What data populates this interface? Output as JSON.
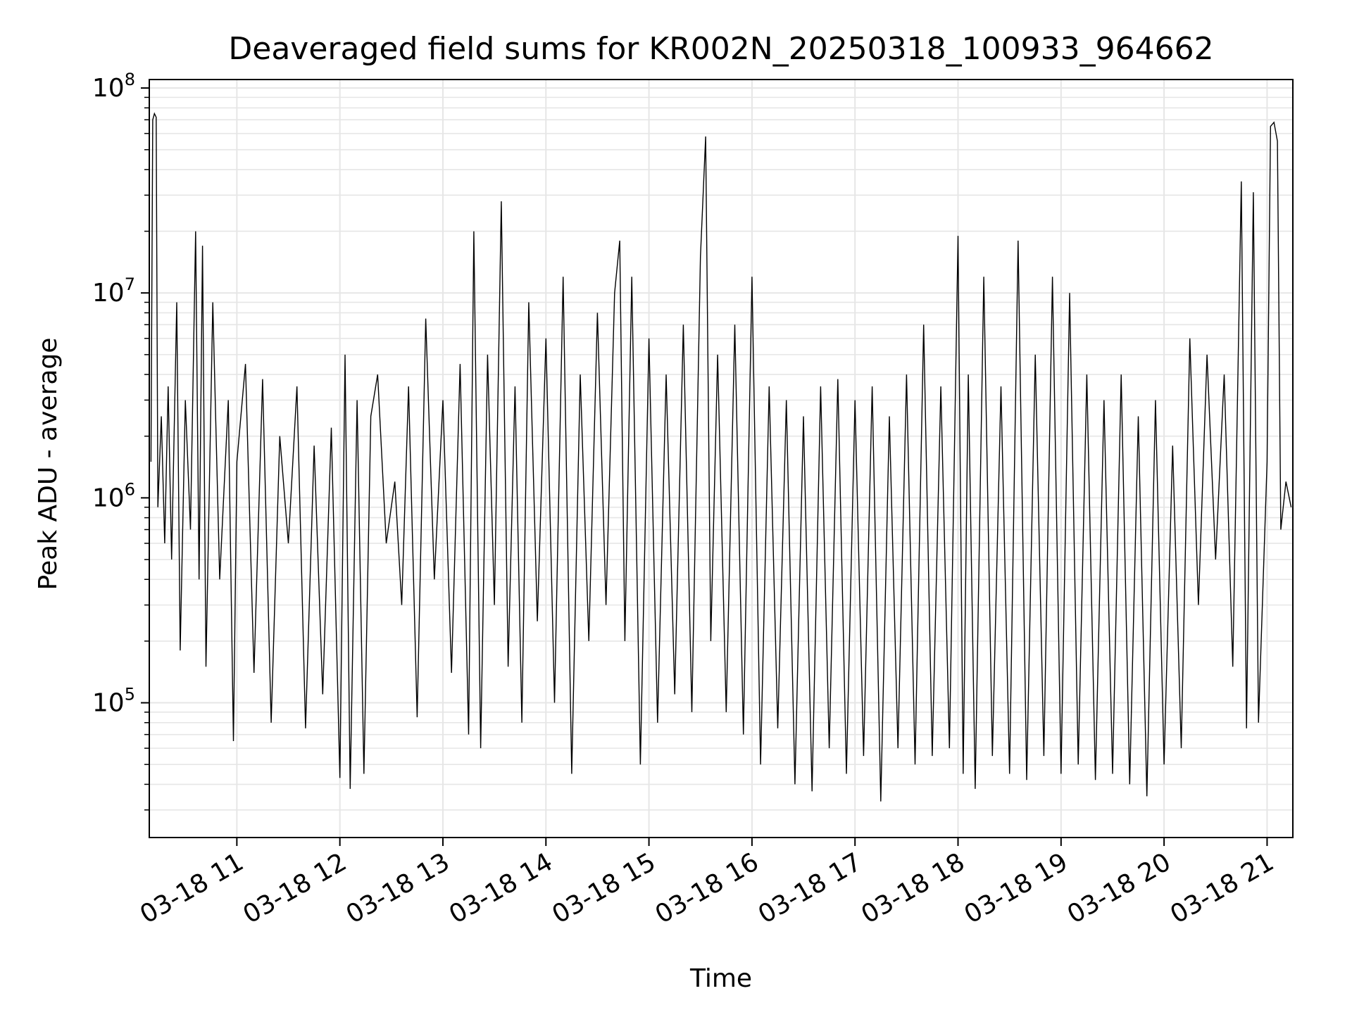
{
  "chart_data": {
    "type": "line",
    "title": "Deaveraged field sums for KR002N_20250318_100933_964662",
    "xlabel": "Time",
    "ylabel": "Peak ADU - average",
    "x_ticks": [
      "03-18 11",
      "03-18 12",
      "03-18 13",
      "03-18 14",
      "03-18 15",
      "03-18 16",
      "03-18 17",
      "03-18 18",
      "03-18 19",
      "03-18 20",
      "03-18 21"
    ],
    "y_ticks": [
      {
        "base": "10",
        "exp": "5",
        "value": 100000
      },
      {
        "base": "10",
        "exp": "6",
        "value": 1000000
      },
      {
        "base": "10",
        "exp": "7",
        "value": 10000000
      },
      {
        "base": "10",
        "exp": "8",
        "value": 100000000
      }
    ],
    "xlim": [
      "2025-03-18 10:09",
      "2025-03-18 21:15"
    ],
    "ylim": [
      22000,
      110000000
    ],
    "yscale": "log",
    "grid": true,
    "line_color": "#000000",
    "grid_color": "#e6e6e6",
    "series": [
      {
        "points": [
          [
            "2025-03-18 10:10",
            1500000
          ],
          [
            "2025-03-18 10:11",
            70000000
          ],
          [
            "2025-03-18 10:12",
            75000000
          ],
          [
            "2025-03-18 10:13",
            72000000
          ],
          [
            "2025-03-18 10:14",
            900000
          ],
          [
            "2025-03-18 10:16",
            2500000
          ],
          [
            "2025-03-18 10:18",
            600000
          ],
          [
            "2025-03-18 10:20",
            3500000
          ],
          [
            "2025-03-18 10:22",
            500000
          ],
          [
            "2025-03-18 10:25",
            9000000
          ],
          [
            "2025-03-18 10:27",
            180000
          ],
          [
            "2025-03-18 10:30",
            3000000
          ],
          [
            "2025-03-18 10:33",
            700000
          ],
          [
            "2025-03-18 10:36",
            20000000
          ],
          [
            "2025-03-18 10:38",
            400000
          ],
          [
            "2025-03-18 10:40",
            17000000
          ],
          [
            "2025-03-18 10:42",
            150000
          ],
          [
            "2025-03-18 10:46",
            9000000
          ],
          [
            "2025-03-18 10:50",
            400000
          ],
          [
            "2025-03-18 10:55",
            3000000
          ],
          [
            "2025-03-18 10:58",
            65000
          ],
          [
            "2025-03-18 11:00",
            1500000
          ],
          [
            "2025-03-18 11:05",
            4500000
          ],
          [
            "2025-03-18 11:10",
            140000
          ],
          [
            "2025-03-18 11:15",
            3800000
          ],
          [
            "2025-03-18 11:20",
            80000
          ],
          [
            "2025-03-18 11:25",
            2000000
          ],
          [
            "2025-03-18 11:30",
            600000
          ],
          [
            "2025-03-18 11:35",
            3500000
          ],
          [
            "2025-03-18 11:40",
            75000
          ],
          [
            "2025-03-18 11:45",
            1800000
          ],
          [
            "2025-03-18 11:50",
            110000
          ],
          [
            "2025-03-18 11:55",
            2200000
          ],
          [
            "2025-03-18 12:00",
            43000
          ],
          [
            "2025-03-18 12:03",
            5000000
          ],
          [
            "2025-03-18 12:06",
            38000
          ],
          [
            "2025-03-18 12:10",
            3000000
          ],
          [
            "2025-03-18 12:14",
            45000
          ],
          [
            "2025-03-18 12:18",
            2500000
          ],
          [
            "2025-03-18 12:22",
            4000000
          ],
          [
            "2025-03-18 12:27",
            600000
          ],
          [
            "2025-03-18 12:32",
            1200000
          ],
          [
            "2025-03-18 12:36",
            300000
          ],
          [
            "2025-03-18 12:40",
            3500000
          ],
          [
            "2025-03-18 12:45",
            85000
          ],
          [
            "2025-03-18 12:50",
            7500000
          ],
          [
            "2025-03-18 12:55",
            400000
          ],
          [
            "2025-03-18 13:00",
            3000000
          ],
          [
            "2025-03-18 13:05",
            140000
          ],
          [
            "2025-03-18 13:10",
            4500000
          ],
          [
            "2025-03-18 13:15",
            70000
          ],
          [
            "2025-03-18 13:18",
            20000000
          ],
          [
            "2025-03-18 13:22",
            60000
          ],
          [
            "2025-03-18 13:26",
            5000000
          ],
          [
            "2025-03-18 13:30",
            300000
          ],
          [
            "2025-03-18 13:34",
            28000000
          ],
          [
            "2025-03-18 13:38",
            150000
          ],
          [
            "2025-03-18 13:42",
            3500000
          ],
          [
            "2025-03-18 13:46",
            80000
          ],
          [
            "2025-03-18 13:50",
            9000000
          ],
          [
            "2025-03-18 13:55",
            250000
          ],
          [
            "2025-03-18 14:00",
            6000000
          ],
          [
            "2025-03-18 14:05",
            100000
          ],
          [
            "2025-03-18 14:10",
            12000000
          ],
          [
            "2025-03-18 14:15",
            45000
          ],
          [
            "2025-03-18 14:20",
            4000000
          ],
          [
            "2025-03-18 14:25",
            200000
          ],
          [
            "2025-03-18 14:30",
            8000000
          ],
          [
            "2025-03-18 14:35",
            300000
          ],
          [
            "2025-03-18 14:40",
            10000000
          ],
          [
            "2025-03-18 14:43",
            18000000
          ],
          [
            "2025-03-18 14:46",
            200000
          ],
          [
            "2025-03-18 14:50",
            12000000
          ],
          [
            "2025-03-18 14:55",
            50000
          ],
          [
            "2025-03-18 15:00",
            6000000
          ],
          [
            "2025-03-18 15:05",
            80000
          ],
          [
            "2025-03-18 15:10",
            4000000
          ],
          [
            "2025-03-18 15:15",
            110000
          ],
          [
            "2025-03-18 15:20",
            7000000
          ],
          [
            "2025-03-18 15:25",
            90000
          ],
          [
            "2025-03-18 15:30",
            15000000
          ],
          [
            "2025-03-18 15:33",
            58000000
          ],
          [
            "2025-03-18 15:36",
            200000
          ],
          [
            "2025-03-18 15:40",
            5000000
          ],
          [
            "2025-03-18 15:45",
            90000
          ],
          [
            "2025-03-18 15:50",
            7000000
          ],
          [
            "2025-03-18 15:55",
            70000
          ],
          [
            "2025-03-18 16:00",
            12000000
          ],
          [
            "2025-03-18 16:05",
            50000
          ],
          [
            "2025-03-18 16:10",
            3500000
          ],
          [
            "2025-03-18 16:15",
            75000
          ],
          [
            "2025-03-18 16:20",
            3000000
          ],
          [
            "2025-03-18 16:25",
            40000
          ],
          [
            "2025-03-18 16:30",
            2500000
          ],
          [
            "2025-03-18 16:35",
            37000
          ],
          [
            "2025-03-18 16:40",
            3500000
          ],
          [
            "2025-03-18 16:45",
            60000
          ],
          [
            "2025-03-18 16:50",
            3800000
          ],
          [
            "2025-03-18 16:55",
            45000
          ],
          [
            "2025-03-18 17:00",
            3000000
          ],
          [
            "2025-03-18 17:05",
            55000
          ],
          [
            "2025-03-18 17:10",
            3500000
          ],
          [
            "2025-03-18 17:15",
            33000
          ],
          [
            "2025-03-18 17:20",
            2500000
          ],
          [
            "2025-03-18 17:25",
            60000
          ],
          [
            "2025-03-18 17:30",
            4000000
          ],
          [
            "2025-03-18 17:35",
            50000
          ],
          [
            "2025-03-18 17:40",
            7000000
          ],
          [
            "2025-03-18 17:45",
            55000
          ],
          [
            "2025-03-18 17:50",
            3500000
          ],
          [
            "2025-03-18 17:55",
            60000
          ],
          [
            "2025-03-18 18:00",
            19000000
          ],
          [
            "2025-03-18 18:03",
            45000
          ],
          [
            "2025-03-18 18:06",
            4000000
          ],
          [
            "2025-03-18 18:10",
            38000
          ],
          [
            "2025-03-18 18:15",
            12000000
          ],
          [
            "2025-03-18 18:20",
            55000
          ],
          [
            "2025-03-18 18:25",
            3500000
          ],
          [
            "2025-03-18 18:30",
            45000
          ],
          [
            "2025-03-18 18:35",
            18000000
          ],
          [
            "2025-03-18 18:40",
            42000
          ],
          [
            "2025-03-18 18:45",
            5000000
          ],
          [
            "2025-03-18 18:50",
            55000
          ],
          [
            "2025-03-18 18:55",
            12000000
          ],
          [
            "2025-03-18 19:00",
            45000
          ],
          [
            "2025-03-18 19:05",
            10000000
          ],
          [
            "2025-03-18 19:10",
            50000
          ],
          [
            "2025-03-18 19:15",
            4000000
          ],
          [
            "2025-03-18 19:20",
            42000
          ],
          [
            "2025-03-18 19:25",
            3000000
          ],
          [
            "2025-03-18 19:30",
            45000
          ],
          [
            "2025-03-18 19:35",
            4000000
          ],
          [
            "2025-03-18 19:40",
            40000
          ],
          [
            "2025-03-18 19:45",
            2500000
          ],
          [
            "2025-03-18 19:50",
            35000
          ],
          [
            "2025-03-18 19:55",
            3000000
          ],
          [
            "2025-03-18 20:00",
            50000
          ],
          [
            "2025-03-18 20:05",
            1800000
          ],
          [
            "2025-03-18 20:10",
            60000
          ],
          [
            "2025-03-18 20:15",
            6000000
          ],
          [
            "2025-03-18 20:20",
            300000
          ],
          [
            "2025-03-18 20:25",
            5000000
          ],
          [
            "2025-03-18 20:30",
            500000
          ],
          [
            "2025-03-18 20:35",
            4000000
          ],
          [
            "2025-03-18 20:40",
            150000
          ],
          [
            "2025-03-18 20:45",
            35000000
          ],
          [
            "2025-03-18 20:48",
            75000
          ],
          [
            "2025-03-18 20:52",
            31000000
          ],
          [
            "2025-03-18 20:55",
            80000
          ],
          [
            "2025-03-18 21:00",
            1500000
          ],
          [
            "2025-03-18 21:02",
            65000000
          ],
          [
            "2025-03-18 21:04",
            68000000
          ],
          [
            "2025-03-18 21:06",
            55000000
          ],
          [
            "2025-03-18 21:08",
            700000
          ],
          [
            "2025-03-18 21:11",
            1200000
          ],
          [
            "2025-03-18 21:14",
            900000
          ]
        ]
      }
    ]
  }
}
